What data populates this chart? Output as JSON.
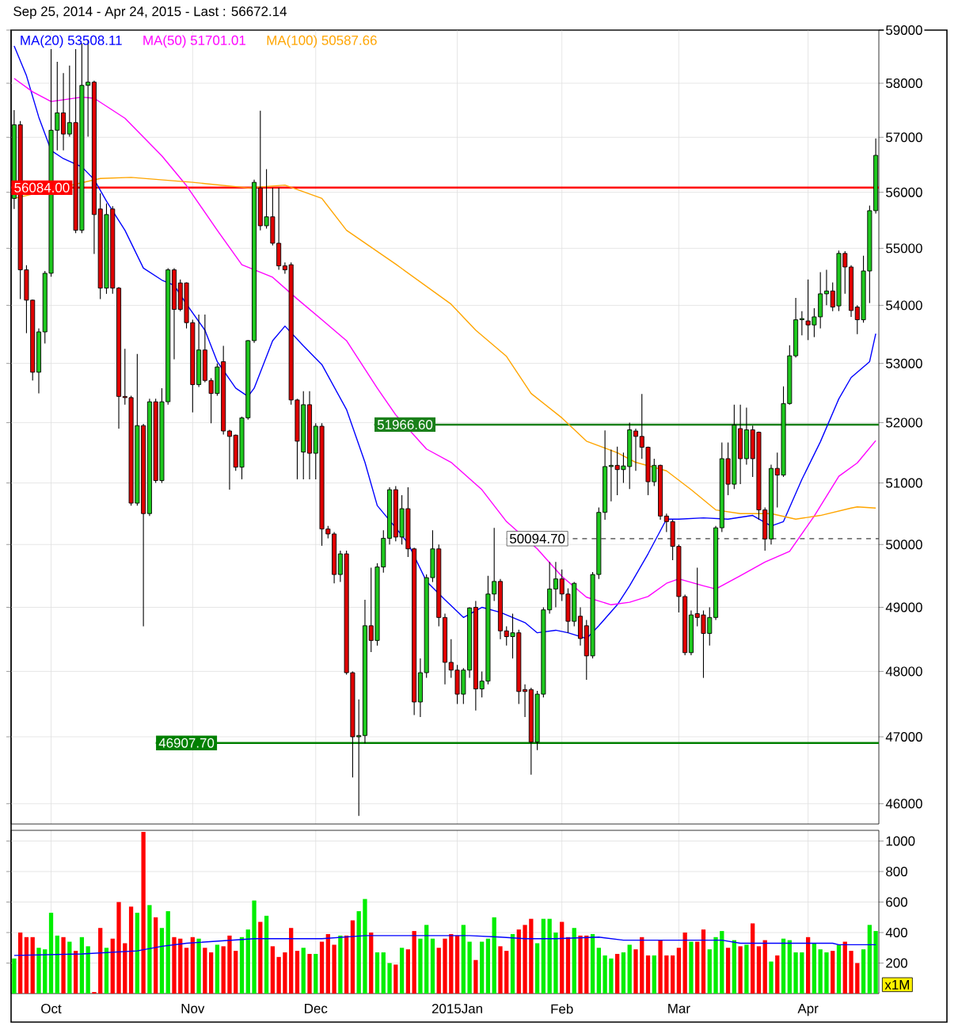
{
  "chart_data": [
    {
      "type": "candlestick",
      "title": "Sep 25, 2014 - Apr 24, 2015 - Last : 56672.14",
      "categories": [
        null,
        null,
        null,
        null,
        null,
        null,
        null,
        null,
        null,
        null,
        null,
        null,
        null,
        null,
        null,
        null,
        null,
        null,
        null,
        null,
        null,
        null,
        null,
        null,
        null,
        null,
        null,
        null,
        null,
        null,
        null,
        null,
        null,
        null,
        null,
        null,
        null,
        null,
        null,
        null,
        null,
        null,
        null,
        null,
        null,
        null,
        null,
        null,
        null,
        null,
        null,
        null,
        null,
        null,
        null,
        null,
        null,
        null,
        null,
        null,
        null,
        null,
        null,
        null,
        null,
        null,
        null,
        null,
        null,
        null,
        null,
        null,
        null,
        null,
        null,
        null,
        null,
        null,
        null,
        null,
        null,
        null,
        null,
        null,
        null,
        null,
        null,
        null,
        null,
        null,
        null,
        null,
        null,
        null,
        null,
        null,
        null,
        null,
        null,
        null,
        null,
        null,
        null,
        null,
        null,
        null,
        null,
        null,
        null,
        null,
        null,
        null,
        null,
        null,
        null,
        null,
        null,
        null,
        null,
        null,
        null,
        null,
        null,
        null,
        null,
        null,
        null,
        null,
        null,
        null,
        null,
        null,
        null,
        null,
        null,
        null,
        null,
        null,
        null,
        null,
        null
      ],
      "ohlc": [
        [
          55890,
          57500,
          55700,
          57230
        ],
        [
          57230,
          57300,
          54110,
          54620
        ],
        [
          54620,
          54700,
          53520,
          54090
        ],
        [
          54090,
          54100,
          52710,
          52850
        ],
        [
          52850,
          53600,
          52490,
          53540
        ],
        [
          53540,
          54600,
          53340,
          54560
        ],
        [
          54560,
          58640,
          54500,
          57130
        ],
        [
          57130,
          58400,
          56760,
          57450
        ],
        [
          57450,
          58190,
          56760,
          57060
        ],
        [
          57060,
          58330,
          57010,
          57270
        ],
        [
          57270,
          58640,
          55270,
          55320
        ],
        [
          55320,
          58750,
          55270,
          57960
        ],
        [
          57960,
          58800,
          57010,
          58020
        ],
        [
          58020,
          58050,
          54900,
          55600
        ],
        [
          55700,
          55980,
          54110,
          54300
        ],
        [
          54300,
          55800,
          54200,
          55600
        ],
        [
          55700,
          55750,
          54200,
          54300
        ],
        [
          54300,
          54320,
          51900,
          52440
        ],
        [
          52440,
          53250,
          52300,
          52420
        ],
        [
          52420,
          52450,
          50630,
          50670
        ],
        [
          50670,
          53160,
          50630,
          51950
        ],
        [
          51950,
          51980,
          48700,
          50500
        ],
        [
          50500,
          52400,
          50460,
          52350
        ],
        [
          52350,
          52400,
          51000,
          51040
        ],
        [
          51040,
          52580,
          51000,
          52350
        ],
        [
          52350,
          54650,
          52300,
          54620
        ],
        [
          54620,
          54650,
          53070,
          53930
        ],
        [
          54390,
          54450,
          53900,
          53930
        ],
        [
          54390,
          54400,
          53600,
          53700
        ],
        [
          53700,
          53750,
          52170,
          52640
        ],
        [
          52640,
          53840,
          52600,
          53230
        ],
        [
          53230,
          53840,
          52680,
          52710
        ],
        [
          52710,
          52750,
          51990,
          52490
        ],
        [
          52490,
          53000,
          52450,
          52940
        ],
        [
          53030,
          53300,
          51800,
          51860
        ],
        [
          51860,
          51880,
          50890,
          51770
        ],
        [
          51790,
          51800,
          51200,
          51260
        ],
        [
          51260,
          52100,
          51060,
          52080
        ],
        [
          52080,
          53400,
          52050,
          53390
        ],
        [
          53390,
          56230,
          53350,
          56180
        ],
        [
          56080,
          57490,
          55320,
          55400
        ],
        [
          55400,
          56420,
          55350,
          55560
        ],
        [
          55560,
          56080,
          55050,
          55090
        ],
        [
          55090,
          56080,
          54620,
          54690
        ],
        [
          54690,
          54750,
          54550,
          54620
        ],
        [
          54710,
          54750,
          52300,
          52380
        ],
        [
          52380,
          52400,
          51060,
          51690
        ],
        [
          51510,
          52530,
          51060,
          52300
        ],
        [
          52300,
          52530,
          51060,
          51490
        ],
        [
          51490,
          51990,
          51060,
          51940
        ],
        [
          51940,
          51990,
          49980,
          50250
        ],
        [
          50250,
          50300,
          50100,
          50170
        ],
        [
          50170,
          50200,
          49380,
          49520
        ],
        [
          49520,
          49900,
          49400,
          49850
        ],
        [
          49850,
          49900,
          47950,
          47980
        ],
        [
          47980,
          48000,
          46390,
          47000
        ],
        [
          47000,
          47570,
          45820,
          47020
        ],
        [
          47020,
          49120,
          46900,
          48710
        ],
        [
          48710,
          49630,
          48300,
          48480
        ],
        [
          48480,
          49700,
          48400,
          49640
        ],
        [
          49640,
          50230,
          49550,
          50100
        ],
        [
          50100,
          50930,
          50000,
          50890
        ],
        [
          50890,
          50950,
          50050,
          50120
        ],
        [
          50120,
          50800,
          50000,
          50580
        ],
        [
          50580,
          50930,
          49800,
          49930
        ],
        [
          49930,
          49950,
          47330,
          47530
        ],
        [
          47530,
          48200,
          47300,
          47980
        ],
        [
          47980,
          49520,
          47900,
          49470
        ],
        [
          49470,
          50230,
          49400,
          49930
        ],
        [
          49930,
          50000,
          48700,
          48840
        ],
        [
          48840,
          48900,
          47800,
          48140
        ],
        [
          48140,
          48500,
          47900,
          48020
        ],
        [
          48020,
          48100,
          47500,
          47650
        ],
        [
          47650,
          48050,
          47500,
          48020
        ],
        [
          48020,
          49000,
          47900,
          48990
        ],
        [
          49000,
          49100,
          47400,
          47730
        ],
        [
          47730,
          48000,
          47600,
          47850
        ],
        [
          47850,
          49500,
          47800,
          49210
        ],
        [
          49210,
          50270,
          49100,
          49410
        ],
        [
          49410,
          49450,
          48500,
          48630
        ],
        [
          48630,
          48700,
          48400,
          48540
        ],
        [
          48540,
          48900,
          48200,
          48600
        ],
        [
          48600,
          48650,
          47500,
          47690
        ],
        [
          47720,
          47800,
          47300,
          47690
        ],
        [
          47720,
          47750,
          46430,
          46920
        ],
        [
          46920,
          47700,
          46800,
          47650
        ],
        [
          47650,
          49000,
          47600,
          48960
        ],
        [
          48960,
          49720,
          48900,
          49290
        ],
        [
          49290,
          49720,
          49000,
          49450
        ],
        [
          49450,
          49600,
          49100,
          49210
        ],
        [
          49210,
          49300,
          48600,
          48780
        ],
        [
          48780,
          49400,
          48700,
          49380
        ],
        [
          48860,
          49000,
          48400,
          48510
        ],
        [
          48710,
          48800,
          47870,
          48240
        ],
        [
          48240,
          49560,
          48200,
          49520
        ],
        [
          49520,
          50600,
          49450,
          50520
        ],
        [
          50520,
          51870,
          50400,
          51270
        ],
        [
          51270,
          51550,
          50700,
          51290
        ],
        [
          51290,
          51600,
          50800,
          51220
        ],
        [
          51220,
          51500,
          51000,
          51280
        ],
        [
          51270,
          52000,
          50900,
          51880
        ],
        [
          51860,
          51900,
          51200,
          51770
        ],
        [
          51770,
          52480,
          51400,
          51590
        ],
        [
          51590,
          51600,
          50800,
          51020
        ],
        [
          51020,
          51400,
          50950,
          51290
        ],
        [
          51290,
          51300,
          50400,
          50460
        ],
        [
          50460,
          50500,
          50200,
          50370
        ],
        [
          50370,
          50400,
          49750,
          49970
        ],
        [
          49970,
          50000,
          48920,
          49170
        ],
        [
          49170,
          49200,
          48250,
          48290
        ],
        [
          48290,
          48950,
          48250,
          48880
        ],
        [
          48900,
          49630,
          48700,
          48840
        ],
        [
          48880,
          48950,
          47900,
          48590
        ],
        [
          48590,
          49000,
          48400,
          48840
        ],
        [
          48840,
          50300,
          48800,
          50270
        ],
        [
          50270,
          51670,
          50200,
          51400
        ],
        [
          51400,
          51670,
          50800,
          50980
        ],
        [
          50980,
          52300,
          50900,
          51960
        ],
        [
          51900,
          52300,
          50980,
          51400
        ],
        [
          51400,
          52250,
          51300,
          51880
        ],
        [
          51880,
          51950,
          51100,
          51400
        ],
        [
          51840,
          51850,
          50400,
          50560
        ],
        [
          50560,
          50600,
          49900,
          50090
        ],
        [
          50090,
          51300,
          50000,
          51240
        ],
        [
          51240,
          51500,
          50600,
          51130
        ],
        [
          51130,
          52610,
          51100,
          52320
        ],
        [
          52320,
          53310,
          52300,
          53130
        ],
        [
          53130,
          54130,
          53100,
          53750
        ],
        [
          53750,
          53900,
          53480,
          53770
        ],
        [
          53730,
          54450,
          53400,
          53660
        ],
        [
          53660,
          53950,
          53450,
          53800
        ],
        [
          53800,
          54580,
          53600,
          54200
        ],
        [
          54200,
          54620,
          54000,
          54250
        ],
        [
          54250,
          54400,
          53900,
          53970
        ],
        [
          53990,
          54960,
          53900,
          54910
        ],
        [
          54910,
          54950,
          54200,
          54670
        ],
        [
          54670,
          54700,
          53800,
          53910
        ],
        [
          53970,
          54000,
          53500,
          53750
        ],
        [
          53750,
          54870,
          53700,
          54600
        ],
        [
          54600,
          55760,
          54040,
          55670
        ],
        [
          55670,
          56980,
          55620,
          56670
        ]
      ],
      "colors": [
        "#1ec81e",
        "#e00000",
        "#e00000",
        "#e00000",
        "#1ec81e",
        "#1ec81e",
        "#1ec81e",
        "#1ec81e",
        "#e00000",
        "#1ec81e",
        "#e00000",
        "#1ec81e",
        "#1ec81e",
        "#e00000",
        "#e00000",
        "#1ec81e",
        "#e00000",
        "#e00000",
        "#e00000",
        "#e00000",
        "#1ec81e",
        "#e00000",
        "#1ec81e",
        "#e00000",
        "#1ec81e",
        "#1ec81e",
        "#e00000",
        "#e00000",
        "#e00000",
        "#e00000",
        "#1ec81e",
        "#e00000",
        "#e00000",
        "#1ec81e",
        "#e00000",
        "#e00000",
        "#e00000",
        "#1ec81e",
        "#1ec81e",
        "#1ec81e",
        "#e00000",
        "#1ec81e",
        "#e00000",
        "#e00000",
        "#e00000",
        "#e00000",
        "#e00000",
        "#1ec81e",
        "#e00000",
        "#1ec81e",
        "#e00000",
        "#e00000",
        "#e00000",
        "#1ec81e",
        "#e00000",
        "#e00000",
        "#1ec81e",
        "#1ec81e",
        "#e00000",
        "#1ec81e",
        "#1ec81e",
        "#1ec81e",
        "#e00000",
        "#1ec81e",
        "#e00000",
        "#e00000",
        "#1ec81e",
        "#1ec81e",
        "#1ec81e",
        "#e00000",
        "#e00000",
        "#e00000",
        "#e00000",
        "#1ec81e",
        "#1ec81e",
        "#e00000",
        "#1ec81e",
        "#1ec81e",
        "#1ec81e",
        "#e00000",
        "#e00000",
        "#1ec81e",
        "#e00000",
        "#e00000",
        "#e00000",
        "#1ec81e",
        "#1ec81e",
        "#1ec81e",
        "#1ec81e",
        "#e00000",
        "#e00000",
        "#1ec81e",
        "#e00000",
        "#e00000",
        "#1ec81e",
        "#1ec81e",
        "#1ec81e",
        "#1ec81e",
        "#e00000",
        "#1ec81e",
        "#1ec81e",
        "#e00000",
        "#e00000",
        "#e00000",
        "#1ec81e",
        "#e00000",
        "#e00000",
        "#e00000",
        "#e00000",
        "#e00000",
        "#1ec81e",
        "#e00000",
        "#e00000",
        "#1ec81e",
        "#1ec81e",
        "#1ec81e",
        "#e00000",
        "#1ec81e",
        "#e00000",
        "#1ec81e",
        "#e00000",
        "#e00000",
        "#e00000",
        "#1ec81e",
        "#e00000",
        "#1ec81e",
        "#1ec81e",
        "#1ec81e",
        "#1ec81e",
        "#e00000",
        "#1ec81e",
        "#1ec81e",
        "#1ec81e",
        "#e00000",
        "#1ec81e",
        "#e00000",
        "#e00000",
        "#e00000",
        "#1ec81e",
        "#1ec81e",
        "#1ec81e"
      ],
      "series": [
        {
          "type": "line",
          "name": "MA(20) 53508.11",
          "color": "#0000ff",
          "values": [
            58700,
            null,
            58140,
            null,
            57370,
            null,
            56760,
            null,
            56610,
            null,
            null,
            56460,
            null,
            56230,
            null,
            55840,
            null,
            null,
            55320,
            null,
            null,
            54650,
            null,
            null,
            54440,
            null,
            54350,
            null,
            54020,
            null,
            null,
            53570,
            null,
            53030,
            null,
            null,
            52580,
            null,
            52440,
            52580,
            null,
            null,
            53390,
            null,
            53640,
            null,
            null,
            53300,
            null,
            null,
            52980,
            null,
            null,
            null,
            52220,
            null,
            null,
            51340,
            null,
            50630,
            null,
            null,
            50270,
            null,
            50020,
            null,
            null,
            49410,
            null,
            null,
            49120,
            null,
            null,
            48840,
            null,
            null,
            49000,
            null,
            null,
            48920,
            null,
            null,
            null,
            48760,
            null,
            48600,
            null,
            null,
            48640,
            null,
            48600,
            null,
            null,
            48510,
            null,
            48710,
            null,
            null,
            49040,
            null,
            49340,
            null,
            null,
            49850,
            null,
            null,
            50410,
            null,
            50410,
            null,
            null,
            null,
            50430,
            null,
            null,
            null,
            50410,
            null,
            null,
            null,
            50470,
            null,
            null,
            50300,
            null,
            50370,
            null,
            null,
            51060,
            null,
            null,
            51680,
            null,
            null,
            52400,
            null,
            52760,
            null,
            null,
            53030,
            53510
          ]
        },
        {
          "type": "line",
          "name": "MA(50) 51701.01",
          "color": "#ff00ff",
          "values": [
            58090,
            null,
            null,
            57840,
            null,
            null,
            57660,
            null,
            null,
            null,
            null,
            57740,
            null,
            57720,
            null,
            null,
            null,
            null,
            57350,
            null,
            null,
            null,
            null,
            null,
            56660,
            null,
            null,
            null,
            56120,
            null,
            null,
            null,
            null,
            55320,
            null,
            null,
            null,
            54710,
            null,
            null,
            null,
            null,
            54490,
            null,
            null,
            null,
            54110,
            null,
            null,
            null,
            53750,
            null,
            null,
            null,
            53390,
            null,
            null,
            null,
            null,
            52580,
            null,
            null,
            52130,
            null,
            null,
            null,
            null,
            51560,
            null,
            null,
            null,
            51340,
            null,
            null,
            null,
            null,
            50890,
            null,
            null,
            null,
            50370,
            null,
            null,
            null,
            null,
            49930,
            null,
            null,
            null,
            49490,
            null,
            null,
            null,
            49160,
            null,
            null,
            null,
            49040,
            null,
            null,
            49080,
            null,
            null,
            49170,
            null,
            null,
            49380,
            null,
            49450,
            null,
            null,
            null,
            49340,
            null,
            49290,
            null,
            null,
            null,
            49500,
            null,
            null,
            null,
            49720,
            null,
            null,
            null,
            49890,
            null,
            null,
            null,
            50460,
            null,
            null,
            null,
            51110,
            null,
            null,
            51330,
            null,
            null,
            51700
          ]
        },
        {
          "type": "line",
          "name": "MA(100) 50587.66",
          "color": "#ffa500",
          "values": [
            55890,
            null,
            null,
            null,
            null,
            null,
            null,
            null,
            null,
            null,
            null,
            null,
            null,
            null,
            56250,
            null,
            null,
            null,
            null,
            56270,
            null,
            null,
            null,
            null,
            null,
            null,
            null,
            null,
            null,
            56180,
            null,
            null,
            null,
            null,
            null,
            null,
            null,
            null,
            56080,
            null,
            null,
            null,
            null,
            null,
            56130,
            null,
            null,
            null,
            null,
            null,
            55890,
            null,
            null,
            null,
            55320,
            null,
            null,
            null,
            null,
            null,
            null,
            null,
            54720,
            null,
            null,
            null,
            null,
            null,
            null,
            null,
            null,
            54020,
            null,
            null,
            null,
            53570,
            null,
            null,
            null,
            null,
            53120,
            null,
            null,
            null,
            52490,
            null,
            null,
            null,
            null,
            52080,
            null,
            null,
            null,
            51690,
            null,
            null,
            null,
            null,
            51500,
            null,
            null,
            51340,
            null,
            null,
            null,
            null,
            51200,
            null,
            null,
            null,
            50890,
            null,
            null,
            null,
            50560,
            null,
            null,
            null,
            50500,
            null,
            null,
            null,
            null,
            50500,
            null,
            null,
            null,
            50410,
            null,
            null,
            null,
            50470,
            null,
            null,
            null,
            null,
            50590,
            50610,
            null,
            null,
            50590
          ]
        }
      ],
      "ref_lines": [
        {
          "axis": "y",
          "value": 56084.0,
          "label": "56084.00",
          "color": "#ff0000"
        },
        {
          "axis": "y",
          "value": 51966.6,
          "label": "51966.60",
          "color": "#1a801a"
        },
        {
          "axis": "y",
          "value": 46907.7,
          "label": "46907.70",
          "color": "#008000"
        },
        {
          "axis": "y",
          "value": 50094.7,
          "label": "50094.70",
          "color": "#404040",
          "line_style": "dashed"
        }
      ],
      "ylim": [
        45700,
        59000
      ],
      "yticks": [
        46000,
        47000,
        48000,
        49000,
        50000,
        51000,
        52000,
        53000,
        54000,
        55000,
        56000,
        57000,
        58000,
        59000
      ],
      "log": true,
      "grid": true,
      "legend": "top left",
      "tick_labels": "y"
    },
    {
      "type": "bar",
      "categories": [
        null,
        null,
        null,
        null,
        null,
        null,
        "Oct",
        null,
        null,
        null,
        null,
        null,
        null,
        null,
        null,
        null,
        null,
        null,
        null,
        null,
        null,
        null,
        null,
        null,
        null,
        null,
        null,
        null,
        null,
        "Nov",
        null,
        null,
        null,
        null,
        null,
        null,
        null,
        null,
        null,
        null,
        null,
        null,
        null,
        null,
        null,
        null,
        null,
        null,
        null,
        "Dec",
        null,
        null,
        null,
        null,
        null,
        null,
        null,
        null,
        null,
        null,
        null,
        null,
        null,
        null,
        null,
        null,
        null,
        null,
        null,
        null,
        null,
        null,
        "2015Jan",
        null,
        null,
        null,
        null,
        null,
        null,
        null,
        null,
        null,
        null,
        null,
        null,
        null,
        null,
        null,
        null,
        "Feb",
        null,
        null,
        null,
        null,
        null,
        null,
        null,
        null,
        null,
        null,
        null,
        null,
        null,
        null,
        null,
        null,
        null,
        null,
        "Mar",
        null,
        null,
        null,
        null,
        null,
        null,
        null,
        null,
        null,
        null,
        null,
        null,
        null,
        null,
        null,
        null,
        null,
        null,
        null,
        null,
        "Apr",
        null,
        null,
        null,
        null,
        null,
        null,
        null,
        null,
        null,
        null,
        null
      ],
      "series": [
        {
          "type": "bar",
          "values": [
            230,
            400,
            370,
            370,
            300,
            290,
            530,
            380,
            370,
            340,
            280,
            370,
            310,
            10,
            430,
            300,
            360,
            600,
            330,
            570,
            530,
            1060,
            580,
            500,
            430,
            540,
            370,
            360,
            300,
            370,
            360,
            300,
            270,
            320,
            310,
            380,
            280,
            370,
            420,
            610,
            470,
            510,
            310,
            240,
            270,
            430,
            280,
            300,
            260,
            260,
            340,
            390,
            320,
            380,
            380,
            480,
            540,
            620,
            400,
            270,
            270,
            200,
            190,
            300,
            290,
            410,
            360,
            450,
            360,
            300,
            360,
            390,
            380,
            450,
            340,
            220,
            340,
            360,
            500,
            310,
            280,
            390,
            420,
            450,
            490,
            330,
            490,
            490,
            400,
            470,
            370,
            430,
            380,
            380,
            390,
            300,
            250,
            230,
            260,
            270,
            320,
            290,
            370,
            250,
            250,
            350,
            250,
            250,
            300,
            400,
            340,
            340,
            420,
            290,
            370,
            410,
            300,
            350,
            310,
            320,
            460,
            310,
            350,
            210,
            250,
            360,
            350,
            270,
            270,
            370,
            330,
            290,
            270,
            280,
            320,
            340,
            280,
            200,
            290,
            450,
            410
          ],
          "colors": [
            "#00ee00",
            "#ff0000",
            "#ff0000",
            "#ff0000",
            "#00ee00",
            "#00ee00",
            "#00ee00",
            "#00ee00",
            "#ff0000",
            "#00ee00",
            "#ff0000",
            "#00ee00",
            "#00ee00",
            "#ff0000",
            "#ff0000",
            "#00ee00",
            "#ff0000",
            "#ff0000",
            "#ff0000",
            "#ff0000",
            "#00ee00",
            "#ff0000",
            "#00ee00",
            "#ff0000",
            "#00ee00",
            "#00ee00",
            "#ff0000",
            "#ff0000",
            "#ff0000",
            "#ff0000",
            "#00ee00",
            "#ff0000",
            "#ff0000",
            "#00ee00",
            "#ff0000",
            "#ff0000",
            "#ff0000",
            "#00ee00",
            "#00ee00",
            "#00ee00",
            "#ff0000",
            "#00ee00",
            "#ff0000",
            "#ff0000",
            "#ff0000",
            "#ff0000",
            "#ff0000",
            "#00ee00",
            "#ff0000",
            "#00ee00",
            "#ff0000",
            "#ff0000",
            "#ff0000",
            "#00ee00",
            "#ff0000",
            "#ff0000",
            "#00ee00",
            "#00ee00",
            "#ff0000",
            "#00ee00",
            "#00ee00",
            "#00ee00",
            "#ff0000",
            "#00ee00",
            "#ff0000",
            "#ff0000",
            "#00ee00",
            "#00ee00",
            "#00ee00",
            "#ff0000",
            "#ff0000",
            "#ff0000",
            "#ff0000",
            "#00ee00",
            "#00ee00",
            "#ff0000",
            "#00ee00",
            "#00ee00",
            "#00ee00",
            "#ff0000",
            "#ff0000",
            "#00ee00",
            "#ff0000",
            "#ff0000",
            "#ff0000",
            "#00ee00",
            "#00ee00",
            "#00ee00",
            "#00ee00",
            "#ff0000",
            "#ff0000",
            "#00ee00",
            "#ff0000",
            "#ff0000",
            "#00ee00",
            "#00ee00",
            "#00ee00",
            "#00ee00",
            "#ff0000",
            "#00ee00",
            "#00ee00",
            "#ff0000",
            "#ff0000",
            "#ff0000",
            "#00ee00",
            "#ff0000",
            "#ff0000",
            "#ff0000",
            "#ff0000",
            "#ff0000",
            "#00ee00",
            "#ff0000",
            "#ff0000",
            "#00ee00",
            "#00ee00",
            "#00ee00",
            "#ff0000",
            "#00ee00",
            "#ff0000",
            "#00ee00",
            "#ff0000",
            "#ff0000",
            "#ff0000",
            "#00ee00",
            "#ff0000",
            "#00ee00",
            "#00ee00",
            "#00ee00",
            "#00ee00",
            "#ff0000",
            "#00ee00",
            "#00ee00",
            "#00ee00",
            "#ff0000",
            "#00ee00",
            "#ff0000",
            "#ff0000",
            "#ff0000",
            "#00ee00",
            "#00ee00",
            "#00ee00"
          ]
        },
        {
          "type": "line",
          "color": "#0000ff",
          "values": [
            250,
            null,
            null,
            null,
            null,
            null,
            null,
            null,
            null,
            null,
            null,
            260,
            null,
            null,
            null,
            null,
            null,
            null,
            null,
            null,
            280,
            null,
            null,
            null,
            310,
            null,
            null,
            null,
            330,
            null,
            null,
            null,
            null,
            null,
            null,
            null,
            null,
            null,
            null,
            360,
            null,
            null,
            null,
            null,
            null,
            null,
            null,
            null,
            null,
            null,
            360,
            null,
            null,
            null,
            null,
            null,
            null,
            380,
            null,
            null,
            null,
            null,
            null,
            null,
            null,
            null,
            null,
            null,
            null,
            null,
            null,
            null,
            null,
            null,
            380,
            null,
            null,
            null,
            null,
            370,
            null,
            null,
            null,
            360,
            null,
            null,
            null,
            null,
            360,
            null,
            null,
            null,
            null,
            null,
            null,
            370,
            null,
            null,
            null,
            350,
            null,
            null,
            null,
            null,
            null,
            null,
            null,
            null,
            null,
            null,
            null,
            null,
            null,
            null,
            null,
            350,
            null,
            null,
            330,
            null,
            null,
            null,
            null,
            null,
            null,
            null,
            null,
            null,
            null,
            null,
            null,
            null,
            null,
            330,
            320,
            null,
            null,
            null,
            null,
            null,
            320
          ]
        }
      ],
      "ylim": [
        0,
        1070
      ],
      "yticks": [
        200,
        400,
        600,
        800,
        1000
      ],
      "grid": true,
      "annotations": [
        "x1M"
      ]
    }
  ]
}
